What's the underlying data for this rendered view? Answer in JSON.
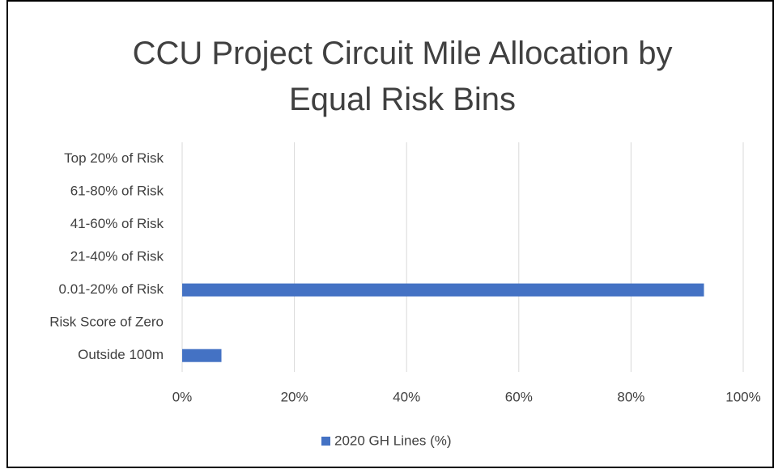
{
  "chart_data": {
    "type": "barh",
    "title": "CCU Project Circuit Mile Allocation by Equal Risk Bins",
    "categories": [
      "Top 20% of Risk",
      "61-80% of Risk",
      "41-60% of Risk",
      "21-40% of Risk",
      "0.01-20% of Risk",
      "Risk Score of Zero",
      "Outside 100m"
    ],
    "series": [
      {
        "name": "2020 GH Lines (%)",
        "color": "#4472c4",
        "values": [
          0,
          0,
          0,
          0,
          93,
          0,
          7
        ]
      }
    ],
    "xlim": [
      0,
      100
    ],
    "xticks": [
      {
        "value": 0,
        "label": "0%"
      },
      {
        "value": 20,
        "label": "20%"
      },
      {
        "value": 40,
        "label": "40%"
      },
      {
        "value": 60,
        "label": "60%"
      },
      {
        "value": 80,
        "label": "80%"
      },
      {
        "value": 100,
        "label": "100%"
      }
    ],
    "grid": true,
    "legend": "bottom"
  }
}
